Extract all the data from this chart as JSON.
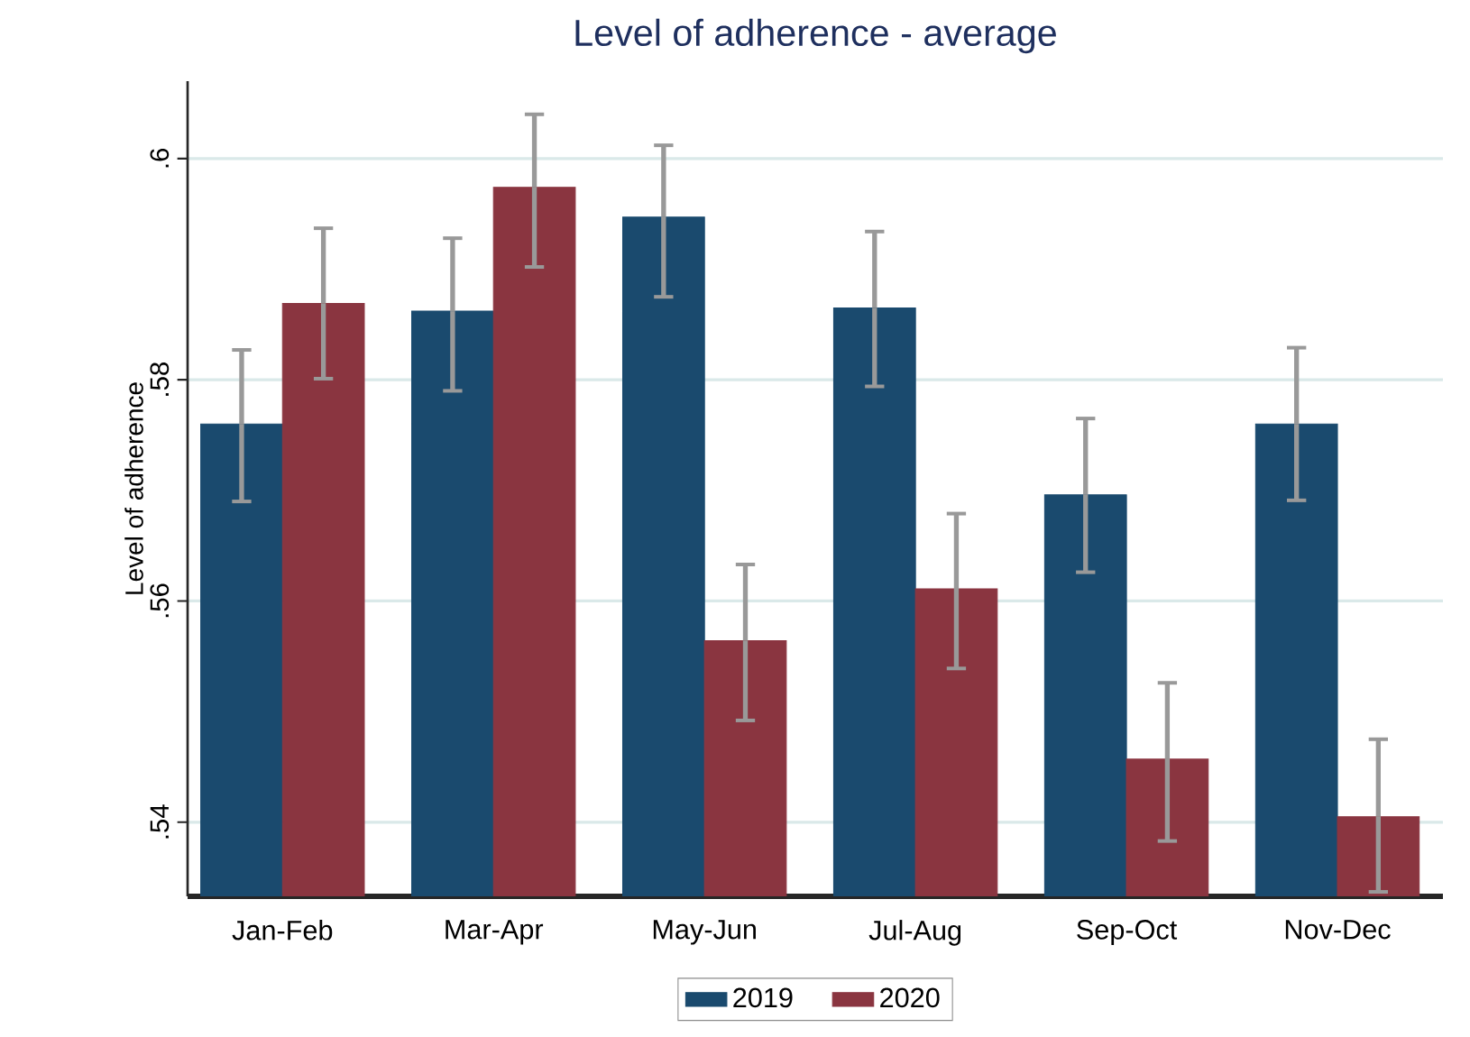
{
  "chart_data": {
    "type": "bar",
    "title": "Level of adherence - average",
    "ylabel": "Level of adherence",
    "categories": [
      "Jan-Feb",
      "Mar-Apr",
      "May-Jun",
      "Jul-Aug",
      "Sep-Oct",
      "Nov-Dec"
    ],
    "series": [
      {
        "name": "2019",
        "color": "#1a4a6e",
        "values": [
          0.576,
          0.5862,
          0.5947,
          0.5865,
          0.5696,
          0.576
        ],
        "errors": [
          [
            0.569,
            0.5827
          ],
          [
            0.579,
            0.5928
          ],
          [
            0.5875,
            0.6012
          ],
          [
            0.5794,
            0.5934
          ],
          [
            0.5626,
            0.5765
          ],
          [
            0.5691,
            0.5829
          ]
        ]
      },
      {
        "name": "2020",
        "color": "#8a3540",
        "values": [
          0.5869,
          0.5974,
          0.5564,
          0.5611,
          0.5457,
          0.5405
        ],
        "errors": [
          [
            0.5801,
            0.5937
          ],
          [
            0.5902,
            0.604
          ],
          [
            0.5492,
            0.5633
          ],
          [
            0.5539,
            0.5679
          ],
          [
            0.5383,
            0.5526
          ],
          [
            0.5337,
            0.5475
          ]
        ]
      }
    ],
    "ylim": [
      0.5333,
      0.607
    ],
    "yticks": [
      {
        "value": 0.54,
        "label": ".54"
      },
      {
        "value": 0.56,
        "label": ".56"
      },
      {
        "value": 0.58,
        "label": ".58"
      },
      {
        "value": 0.6,
        "label": ".6"
      }
    ],
    "grid": "y",
    "legend": "bottom"
  }
}
